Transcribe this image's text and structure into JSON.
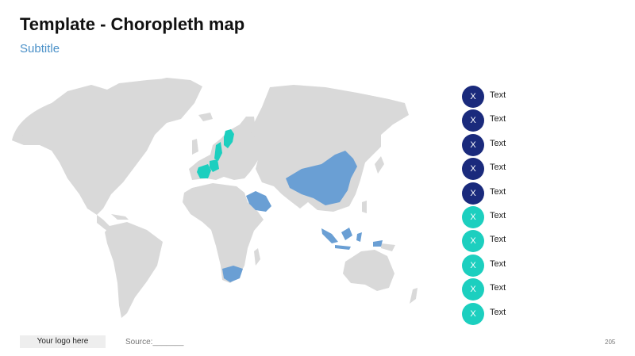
{
  "title": "Template - Choropleth map",
  "subtitle": "Subtitle",
  "colors": {
    "land": "#d9d9d9",
    "dark_blue": "#1a2a7c",
    "teal": "#1ccfbf",
    "medium_blue": "#6a9fd4"
  },
  "map": {
    "highlighted_regions": [
      {
        "region": "Finland",
        "category": "teal"
      },
      {
        "region": "Sweden",
        "category": "teal"
      },
      {
        "region": "France",
        "category": "teal"
      },
      {
        "region": "Germany",
        "category": "teal"
      },
      {
        "region": "Saudi Arabia",
        "category": "medium_blue"
      },
      {
        "region": "China",
        "category": "medium_blue"
      },
      {
        "region": "Indonesia",
        "category": "medium_blue"
      },
      {
        "region": "South Africa",
        "category": "medium_blue"
      }
    ]
  },
  "legend": {
    "items": [
      {
        "symbol": "X",
        "label": "Text",
        "color": "#1a2a7c"
      },
      {
        "symbol": "X",
        "label": "Text",
        "color": "#1a2a7c"
      },
      {
        "symbol": "X",
        "label": "Text",
        "color": "#1a2a7c"
      },
      {
        "symbol": "X",
        "label": "Text",
        "color": "#1a2a7c"
      },
      {
        "symbol": "X",
        "label": "Text",
        "color": "#1a2a7c"
      },
      {
        "symbol": "X",
        "label": "Text",
        "color": "#1ccfbf"
      },
      {
        "symbol": "X",
        "label": "Text",
        "color": "#1ccfbf"
      },
      {
        "symbol": "X",
        "label": "Text",
        "color": "#1ccfbf"
      },
      {
        "symbol": "X",
        "label": "Text",
        "color": "#1ccfbf"
      },
      {
        "symbol": "X",
        "label": "Text",
        "color": "#1ccfbf"
      }
    ]
  },
  "footer": {
    "logo": "Your logo here",
    "source": "Source:_______",
    "page_number": "205"
  }
}
